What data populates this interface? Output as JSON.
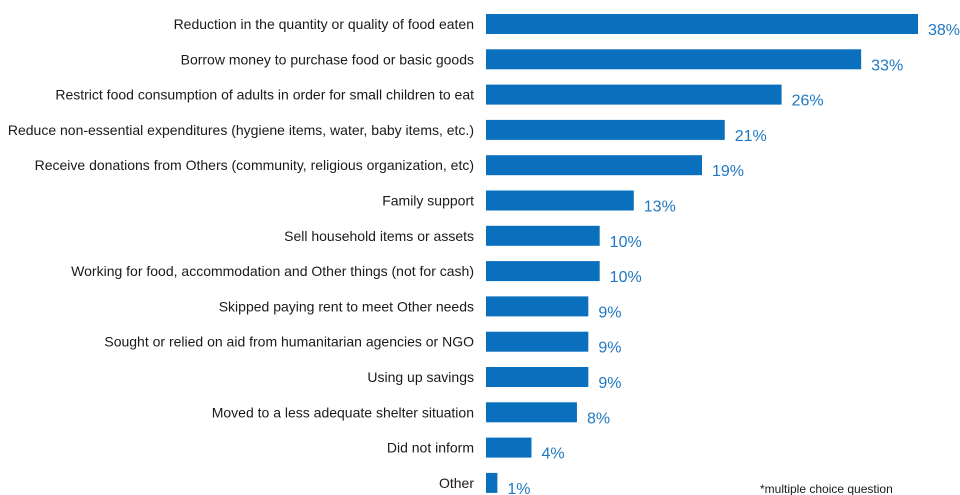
{
  "chart_data": {
    "type": "bar",
    "orientation": "horizontal",
    "categories": [
      "Reduction in the quantity or quality of food eaten",
      "Borrow money to purchase food or basic goods",
      "Restrict food consumption of adults in order for small children to eat",
      "Reduce non-essential expenditures (hygiene items, water, baby items, etc.)",
      "Receive donations from Others (community, religious organization, etc)",
      "Family support",
      "Sell household items or assets",
      "Working for food, accommodation and Other things (not for cash)",
      "Skipped paying rent to meet Other needs",
      "Sought or relied on aid from humanitarian agencies or NGO",
      "Using up savings",
      "Moved to a less adequate shelter situation",
      "Did not inform",
      "Other"
    ],
    "values": [
      38,
      33,
      26,
      21,
      19,
      13,
      10,
      10,
      9,
      9,
      9,
      8,
      4,
      1
    ],
    "value_labels": [
      "38%",
      "33%",
      "26%",
      "21%",
      "19%",
      "13%",
      "10%",
      "10%",
      "9%",
      "9%",
      "9%",
      "8%",
      "4%",
      "1%"
    ],
    "xlim": [
      0,
      38
    ],
    "grid": false,
    "legend": "none",
    "bar_color": "#0a6fbd",
    "label_color": "#1f78c1",
    "note": "*multiple choice question"
  }
}
